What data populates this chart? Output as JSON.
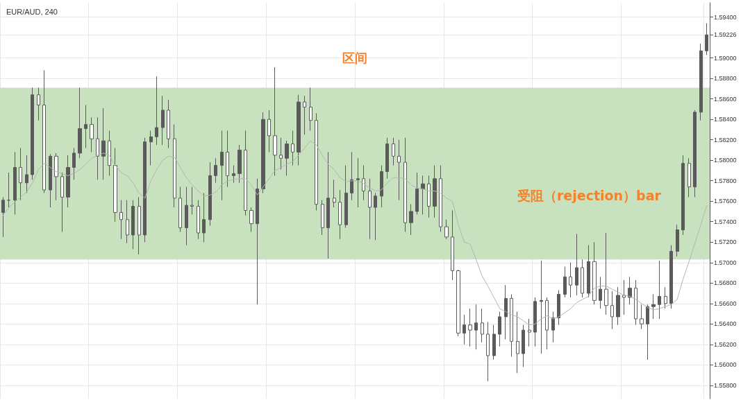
{
  "chart_data": {
    "type": "candlestick",
    "title": "EUR/AUD, 240",
    "categories": [
      null,
      null,
      null,
      null,
      null,
      null,
      null,
      null,
      null,
      null,
      null,
      null,
      null,
      null,
      null,
      null,
      null,
      null,
      null,
      null,
      null,
      null,
      null,
      null,
      null,
      null,
      null,
      null,
      null,
      null,
      null,
      null,
      null,
      null,
      null,
      null,
      null,
      null,
      null,
      null,
      null,
      null,
      null,
      null,
      null,
      null,
      null,
      null,
      null,
      null,
      null,
      null,
      null,
      null,
      null,
      null,
      null,
      null,
      null,
      null,
      null,
      null,
      null,
      null,
      null,
      null,
      null,
      null,
      null,
      null,
      null,
      null,
      null,
      null,
      null,
      null,
      null,
      null,
      null,
      null,
      null,
      null,
      null,
      null,
      null,
      null,
      null,
      null,
      null,
      null,
      null,
      null,
      null,
      null,
      null,
      null,
      null,
      null,
      null,
      null,
      null,
      null,
      null,
      null,
      null,
      null,
      null,
      null,
      null,
      null,
      null,
      null,
      null,
      null,
      null,
      null,
      null,
      null,
      null,
      null
    ],
    "series": [
      {
        "color": "#5a5a5a",
        "ohlc": [
          [
            1.5749,
            1.5764,
            1.5725,
            1.5761
          ],
          [
            1.5761,
            1.5788,
            1.5754,
            1.5761
          ],
          [
            1.5761,
            1.5808,
            1.5747,
            1.5793
          ],
          [
            1.5793,
            1.5812,
            1.5761,
            1.5778
          ],
          [
            1.5778,
            1.5805,
            1.5768,
            1.5786
          ],
          [
            1.5786,
            1.5871,
            1.5781,
            1.5864
          ],
          [
            1.5864,
            1.5871,
            1.5839,
            1.5854
          ],
          [
            1.5854,
            1.5888,
            1.5768,
            1.5771
          ],
          [
            1.5771,
            1.5806,
            1.5754,
            1.5804
          ],
          [
            1.5804,
            1.5807,
            1.5761,
            1.5784
          ],
          [
            1.5784,
            1.5788,
            1.573,
            1.5764
          ],
          [
            1.5764,
            1.5805,
            1.5754,
            1.5793
          ],
          [
            1.5793,
            1.5812,
            1.5781,
            1.5807
          ],
          [
            1.5807,
            1.5871,
            1.5802,
            1.5831
          ],
          [
            1.5831,
            1.5854,
            1.5812,
            1.5835
          ],
          [
            1.5835,
            1.5842,
            1.5808,
            1.5821
          ],
          [
            1.5821,
            1.5842,
            1.5781,
            1.5804
          ],
          [
            1.5804,
            1.5851,
            1.5781,
            1.5819
          ],
          [
            1.5819,
            1.5829,
            1.5785,
            1.5795
          ],
          [
            1.5795,
            1.5812,
            1.574,
            1.5749
          ],
          [
            1.5749,
            1.5761,
            1.5723,
            1.5742
          ],
          [
            1.5742,
            1.5761,
            1.5719,
            1.5727
          ],
          [
            1.5727,
            1.5761,
            1.5713,
            1.5755
          ],
          [
            1.5755,
            1.5764,
            1.5708,
            1.5727
          ],
          [
            1.5727,
            1.5822,
            1.572,
            1.5818
          ],
          [
            1.5818,
            1.5829,
            1.5795,
            1.5823
          ],
          [
            1.5823,
            1.5882,
            1.5815,
            1.5832
          ],
          [
            1.5832,
            1.5863,
            1.5815,
            1.5849
          ],
          [
            1.5849,
            1.5859,
            1.5812,
            1.5821
          ],
          [
            1.5821,
            1.5835,
            1.5754,
            1.5763
          ],
          [
            1.5763,
            1.5774,
            1.573,
            1.5734
          ],
          [
            1.5734,
            1.5774,
            1.5717,
            1.5756
          ],
          [
            1.5756,
            1.5774,
            1.5747,
            1.5755
          ],
          [
            1.5755,
            1.5761,
            1.5723,
            1.5729
          ],
          [
            1.5729,
            1.5768,
            1.572,
            1.5742
          ],
          [
            1.5742,
            1.5798,
            1.5736,
            1.5785
          ],
          [
            1.5785,
            1.5802,
            1.5778,
            1.5795
          ],
          [
            1.5795,
            1.5829,
            1.5761,
            1.5808
          ],
          [
            1.5808,
            1.5829,
            1.5774,
            1.5785
          ],
          [
            1.5785,
            1.5795,
            1.5778,
            1.5787
          ],
          [
            1.5787,
            1.5815,
            1.5778,
            1.581
          ],
          [
            1.581,
            1.5829,
            1.5746,
            1.5751
          ],
          [
            1.5751,
            1.5754,
            1.573,
            1.5738
          ],
          [
            1.5738,
            1.5782,
            1.5659,
            1.5772
          ],
          [
            1.5772,
            1.5847,
            1.5768,
            1.584
          ],
          [
            1.584,
            1.5849,
            1.5808,
            1.5824
          ],
          [
            1.5824,
            1.5891,
            1.5785,
            1.5805
          ],
          [
            1.5805,
            1.5822,
            1.5791,
            1.5802
          ],
          [
            1.5802,
            1.5819,
            1.5785,
            1.5816
          ],
          [
            1.5816,
            1.5829,
            1.5795,
            1.5808
          ],
          [
            1.5808,
            1.5864,
            1.5795,
            1.5857
          ],
          [
            1.5857,
            1.5863,
            1.5825,
            1.5852
          ],
          [
            1.5852,
            1.5871,
            1.5829,
            1.5839
          ],
          [
            1.5839,
            1.5846,
            1.5751,
            1.5757
          ],
          [
            1.5757,
            1.5761,
            1.5727,
            1.5734
          ],
          [
            1.5734,
            1.5808,
            1.5704,
            1.5763
          ],
          [
            1.5763,
            1.5781,
            1.5754,
            1.5759
          ],
          [
            1.5759,
            1.5771,
            1.5723,
            1.5737
          ],
          [
            1.5737,
            1.5795,
            1.5734,
            1.5768
          ],
          [
            1.5768,
            1.5808,
            1.5761,
            1.5781
          ],
          [
            1.5781,
            1.5802,
            1.5754,
            1.5782
          ],
          [
            1.5782,
            1.5795,
            1.5761,
            1.577
          ],
          [
            1.577,
            1.5782,
            1.5723,
            1.5754
          ],
          [
            1.5754,
            1.5768,
            1.5722,
            1.5765
          ],
          [
            1.5765,
            1.5795,
            1.5754,
            1.5789
          ],
          [
            1.5789,
            1.5822,
            1.5782,
            1.5816
          ],
          [
            1.5816,
            1.5822,
            1.5795,
            1.5804
          ],
          [
            1.5804,
            1.582,
            1.5761,
            1.5798
          ],
          [
            1.5798,
            1.5822,
            1.573,
            1.5739
          ],
          [
            1.5739,
            1.5757,
            1.5727,
            1.575
          ],
          [
            1.575,
            1.5788,
            1.5747,
            1.5772
          ],
          [
            1.5772,
            1.5785,
            1.5747,
            1.5777
          ],
          [
            1.5777,
            1.5785,
            1.5744,
            1.5755
          ],
          [
            1.5755,
            1.5795,
            1.5744,
            1.5782
          ],
          [
            1.5782,
            1.5795,
            1.573,
            1.5735
          ],
          [
            1.5735,
            1.5742,
            1.5723,
            1.5725
          ],
          [
            1.5725,
            1.5751,
            1.5683,
            1.5692
          ],
          [
            1.5692,
            1.5693,
            1.5628,
            1.5631
          ],
          [
            1.5631,
            1.5649,
            1.562,
            1.5639
          ],
          [
            1.5639,
            1.5655,
            1.5618,
            1.5634
          ],
          [
            1.5634,
            1.5659,
            1.5615,
            1.5641
          ],
          [
            1.5641,
            1.5655,
            1.5622,
            1.563
          ],
          [
            1.563,
            1.5642,
            1.5584,
            1.5609
          ],
          [
            1.5609,
            1.5639,
            1.5605,
            1.563
          ],
          [
            1.563,
            1.5652,
            1.5618,
            1.5647
          ],
          [
            1.5647,
            1.5678,
            1.5625,
            1.5665
          ],
          [
            1.5665,
            1.5669,
            1.5608,
            1.5623
          ],
          [
            1.5623,
            1.5652,
            1.5592,
            1.5611
          ],
          [
            1.5611,
            1.5639,
            1.5598,
            1.5634
          ],
          [
            1.5634,
            1.5645,
            1.5618,
            1.5632
          ],
          [
            1.5632,
            1.5666,
            1.5618,
            1.5662
          ],
          [
            1.5662,
            1.5702,
            1.5611,
            1.5663
          ],
          [
            1.5663,
            1.5666,
            1.5615,
            1.5634
          ],
          [
            1.5634,
            1.5652,
            1.5622,
            1.5646
          ],
          [
            1.5646,
            1.5673,
            1.5639,
            1.5669
          ],
          [
            1.5669,
            1.5696,
            1.5666,
            1.5686
          ],
          [
            1.5686,
            1.57,
            1.5666,
            1.5678
          ],
          [
            1.5678,
            1.5728,
            1.5668,
            1.5695
          ],
          [
            1.5695,
            1.5703,
            1.5666,
            1.567
          ],
          [
            1.567,
            1.5717,
            1.5666,
            1.5701
          ],
          [
            1.5701,
            1.572,
            1.5659,
            1.5663
          ],
          [
            1.5663,
            1.5686,
            1.5655,
            1.5674
          ],
          [
            1.5674,
            1.5729,
            1.5649,
            1.5658
          ],
          [
            1.5658,
            1.5672,
            1.5635,
            1.5647
          ],
          [
            1.5647,
            1.5676,
            1.5639,
            1.5668
          ],
          [
            1.5668,
            1.5683,
            1.5649,
            1.5666
          ],
          [
            1.5666,
            1.5686,
            1.5659,
            1.5675
          ],
          [
            1.5675,
            1.5683,
            1.5639,
            1.5645
          ],
          [
            1.5645,
            1.5659,
            1.5635,
            1.564
          ],
          [
            1.564,
            1.5659,
            1.5605,
            1.5657
          ],
          [
            1.5657,
            1.5669,
            1.5645,
            1.5659
          ],
          [
            1.5659,
            1.5702,
            1.5645,
            1.5667
          ],
          [
            1.5667,
            1.5676,
            1.5655,
            1.566
          ],
          [
            1.566,
            1.5717,
            1.5655,
            1.5711
          ],
          [
            1.5711,
            1.5737,
            1.5706,
            1.5732
          ],
          [
            1.5732,
            1.5805,
            1.5727,
            1.5797
          ],
          [
            1.5797,
            1.5802,
            1.5764,
            1.5774
          ],
          [
            1.5774,
            1.5849,
            1.5764,
            1.5847
          ],
          [
            1.5847,
            1.5914,
            1.5839,
            1.5907
          ],
          [
            1.5907,
            1.5934,
            1.5903,
            1.59226
          ]
        ]
      },
      {
        "type": "line",
        "color": "#b4b4b4",
        "values": [
          1.5746,
          1.5754,
          1.5759,
          1.5764,
          1.5769,
          1.5778,
          1.5791,
          1.5797,
          1.5793,
          1.5789,
          1.5787,
          1.5785,
          1.5787,
          1.5791,
          1.5796,
          1.5802,
          1.5805,
          1.5807,
          1.5805,
          1.5795,
          1.5788,
          1.5785,
          1.5778,
          1.5768,
          1.5763,
          1.578,
          1.5791,
          1.58,
          1.5804,
          1.5803,
          1.5793,
          1.5783,
          1.5776,
          1.577,
          1.5765,
          1.5766,
          1.5769,
          1.5776,
          1.578,
          1.5781,
          1.5782,
          1.5782,
          1.5776,
          1.5766,
          1.5774,
          1.5782,
          1.579,
          1.5793,
          1.5796,
          1.5799,
          1.5805,
          1.5812,
          1.5819,
          1.5815,
          1.5805,
          1.5796,
          1.5791,
          1.5783,
          1.5779,
          1.578,
          1.578,
          1.5777,
          1.5773,
          1.577,
          1.5771,
          1.5778,
          1.5783,
          1.5783,
          1.5782,
          1.5776,
          1.5773,
          1.5772,
          1.577,
          1.577,
          1.5768,
          1.5763,
          1.576,
          1.5737,
          1.572,
          1.5718,
          1.5703,
          1.5687,
          1.5677,
          1.5666,
          1.5655,
          1.5652,
          1.5649,
          1.5647,
          1.5643,
          1.5639,
          1.564,
          1.5645,
          1.5648,
          1.5645,
          1.5647,
          1.5651,
          1.5655,
          1.5661,
          1.5664,
          1.5667,
          1.5675,
          1.5677,
          1.5677,
          1.5674,
          1.5671,
          1.5668,
          1.5667,
          1.5664,
          1.566,
          1.5656,
          1.5654,
          1.5655,
          1.5657,
          1.5659,
          1.5664,
          1.5684,
          1.5701,
          1.5719,
          1.5737,
          1.5756
        ]
      }
    ],
    "ylim": [
      1.5567,
      1.5954
    ],
    "yticks": [
      {
        "value": 1.558,
        "label": "1.55800"
      },
      {
        "value": 1.56,
        "label": "1.56000"
      },
      {
        "value": 1.562,
        "label": "1.56200"
      },
      {
        "value": 1.564,
        "label": "1.56400"
      },
      {
        "value": 1.566,
        "label": "1.56600"
      },
      {
        "value": 1.568,
        "label": "1.56800"
      },
      {
        "value": 1.57,
        "label": "1.57000"
      },
      {
        "value": 1.572,
        "label": "1.57200"
      },
      {
        "value": 1.574,
        "label": "1.57400"
      },
      {
        "value": 1.576,
        "label": "1.57600"
      },
      {
        "value": 1.578,
        "label": "1.57800"
      },
      {
        "value": 1.58,
        "label": "1.58000"
      },
      {
        "value": 1.582,
        "label": "1.58200"
      },
      {
        "value": 1.584,
        "label": "1.58400"
      },
      {
        "value": 1.586,
        "label": "1.58600"
      },
      {
        "value": 1.588,
        "label": "1.58800"
      },
      {
        "value": 1.59,
        "label": "1.59000"
      },
      {
        "value": 1.59226,
        "label": "1.59226"
      },
      {
        "value": 1.594,
        "label": "1.59400"
      }
    ],
    "bands": [
      {
        "axis": "y",
        "from": 1.5703,
        "to": 1.5871,
        "label": "区间",
        "color": "#c8e2bf"
      }
    ],
    "annotations": [
      "受阻（rejection）bar"
    ],
    "grid": true,
    "tick_labels": "y",
    "marker": "none"
  }
}
